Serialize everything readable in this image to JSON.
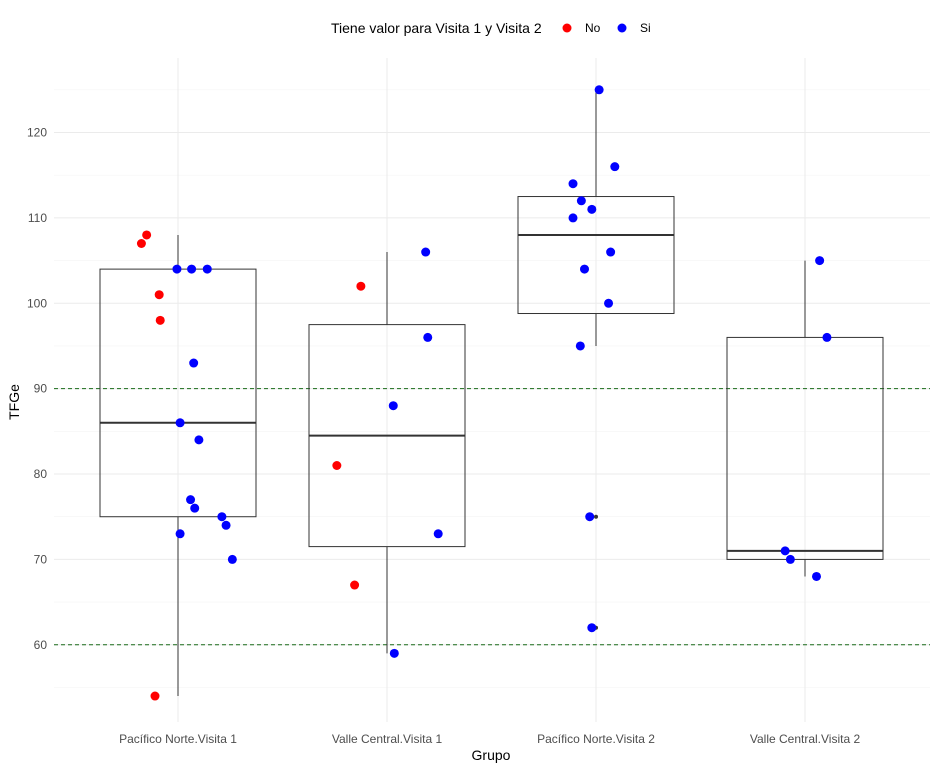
{
  "chart_data": {
    "type": "boxplot",
    "xlabel": "Grupo",
    "ylabel": "TFGe",
    "ylim": [
      50,
      126
    ],
    "yticks": [
      60,
      70,
      80,
      90,
      100,
      110,
      120
    ],
    "grid": true,
    "legend": {
      "title": "Tiene valor para Visita 1 y Visita 2",
      "position": "top",
      "entries": [
        {
          "label": "No",
          "color": "#ff0000"
        },
        {
          "label": "Si",
          "color": "#0000ff"
        }
      ]
    },
    "reference_lines": [
      {
        "y": 90,
        "color": "#1a6b1a",
        "style": "dashed"
      },
      {
        "y": 60,
        "color": "#1a6b1a",
        "style": "dashed"
      }
    ],
    "categories": [
      "Pacífico Norte.Visita 1",
      "Valle Central.Visita 1",
      "Pacífico Norte.Visita 2",
      "Valle Central.Visita 2"
    ],
    "boxes": [
      {
        "category": "Pacífico Norte.Visita 1",
        "lower_whisker": 54,
        "q1": 75,
        "median": 86,
        "q3": 104,
        "upper_whisker": 108,
        "outliers": []
      },
      {
        "category": "Valle Central.Visita 1",
        "lower_whisker": 59,
        "q1": 71.5,
        "median": 84.5,
        "q3": 97.5,
        "upper_whisker": 106,
        "outliers": []
      },
      {
        "category": "Pacífico Norte.Visita 2",
        "lower_whisker": 95,
        "q1": 98.8,
        "median": 108,
        "q3": 112.5,
        "upper_whisker": 125,
        "outliers": [
          75,
          62
        ]
      },
      {
        "category": "Valle Central.Visita 2",
        "lower_whisker": 68,
        "q1": 70,
        "median": 71,
        "q3": 96,
        "upper_whisker": 105,
        "outliers": []
      }
    ],
    "points": [
      {
        "category": 0,
        "jitter": -0.3,
        "y": 108,
        "series": "No"
      },
      {
        "category": 0,
        "jitter": -0.35,
        "y": 107,
        "series": "No"
      },
      {
        "category": 0,
        "jitter": -0.18,
        "y": 101,
        "series": "No"
      },
      {
        "category": 0,
        "jitter": -0.17,
        "y": 98,
        "series": "No"
      },
      {
        "category": 0,
        "jitter": -0.22,
        "y": 54,
        "series": "No"
      },
      {
        "category": 0,
        "jitter": -0.01,
        "y": 104,
        "series": "Si"
      },
      {
        "category": 0,
        "jitter": 0.13,
        "y": 104,
        "series": "Si"
      },
      {
        "category": 0,
        "jitter": 0.28,
        "y": 104,
        "series": "Si"
      },
      {
        "category": 0,
        "jitter": 0.15,
        "y": 93,
        "series": "Si"
      },
      {
        "category": 0,
        "jitter": 0.02,
        "y": 86,
        "series": "Si"
      },
      {
        "category": 0,
        "jitter": 0.2,
        "y": 84,
        "series": "Si"
      },
      {
        "category": 0,
        "jitter": 0.12,
        "y": 77,
        "series": "Si"
      },
      {
        "category": 0,
        "jitter": 0.16,
        "y": 76,
        "series": "Si"
      },
      {
        "category": 0,
        "jitter": 0.42,
        "y": 75,
        "series": "Si"
      },
      {
        "category": 0,
        "jitter": 0.46,
        "y": 74,
        "series": "Si"
      },
      {
        "category": 0,
        "jitter": 0.52,
        "y": 70,
        "series": "Si"
      },
      {
        "category": 0,
        "jitter": 0.02,
        "y": 73,
        "series": "Si"
      },
      {
        "category": 1,
        "jitter": -0.25,
        "y": 102,
        "series": "No"
      },
      {
        "category": 1,
        "jitter": -0.48,
        "y": 81,
        "series": "No"
      },
      {
        "category": 1,
        "jitter": -0.31,
        "y": 67,
        "series": "No"
      },
      {
        "category": 1,
        "jitter": 0.37,
        "y": 106,
        "series": "Si"
      },
      {
        "category": 1,
        "jitter": 0.39,
        "y": 96,
        "series": "Si"
      },
      {
        "category": 1,
        "jitter": 0.06,
        "y": 88,
        "series": "Si"
      },
      {
        "category": 1,
        "jitter": 0.49,
        "y": 73,
        "series": "Si"
      },
      {
        "category": 1,
        "jitter": 0.07,
        "y": 59,
        "series": "Si"
      },
      {
        "category": 2,
        "jitter": 0.03,
        "y": 125,
        "series": "Si"
      },
      {
        "category": 2,
        "jitter": 0.18,
        "y": 116,
        "series": "Si"
      },
      {
        "category": 2,
        "jitter": -0.22,
        "y": 114,
        "series": "Si"
      },
      {
        "category": 2,
        "jitter": -0.14,
        "y": 112,
        "series": "Si"
      },
      {
        "category": 2,
        "jitter": -0.04,
        "y": 111,
        "series": "Si"
      },
      {
        "category": 2,
        "jitter": -0.22,
        "y": 110,
        "series": "Si"
      },
      {
        "category": 2,
        "jitter": 0.14,
        "y": 106,
        "series": "Si"
      },
      {
        "category": 2,
        "jitter": -0.11,
        "y": 104,
        "series": "Si"
      },
      {
        "category": 2,
        "jitter": 0.12,
        "y": 100,
        "series": "Si"
      },
      {
        "category": 2,
        "jitter": -0.15,
        "y": 95,
        "series": "Si"
      },
      {
        "category": 2,
        "jitter": -0.06,
        "y": 75,
        "series": "Si"
      },
      {
        "category": 2,
        "jitter": -0.04,
        "y": 62,
        "series": "Si"
      },
      {
        "category": 3,
        "jitter": 0.14,
        "y": 105,
        "series": "Si"
      },
      {
        "category": 3,
        "jitter": 0.21,
        "y": 96,
        "series": "Si"
      },
      {
        "category": 3,
        "jitter": -0.19,
        "y": 71,
        "series": "Si"
      },
      {
        "category": 3,
        "jitter": -0.14,
        "y": 70,
        "series": "Si"
      },
      {
        "category": 3,
        "jitter": 0.11,
        "y": 68,
        "series": "Si"
      }
    ]
  }
}
